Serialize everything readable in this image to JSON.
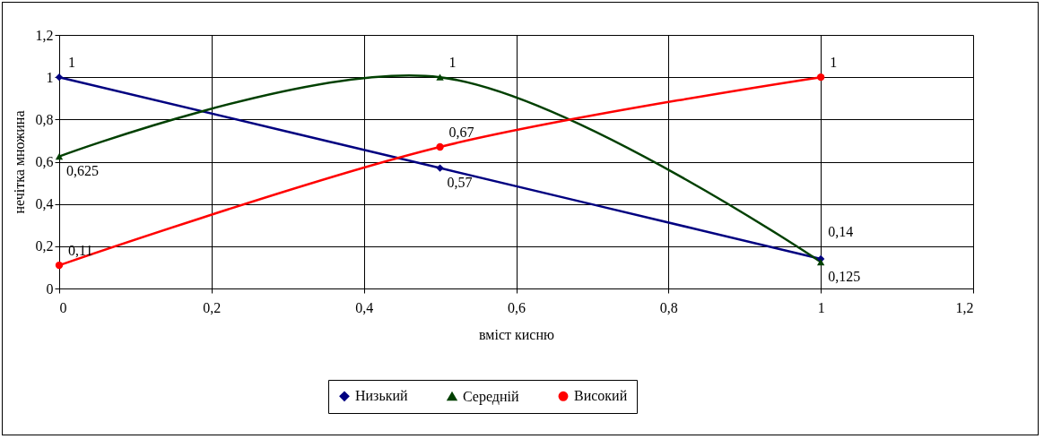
{
  "chart_data": {
    "type": "line",
    "xlabel": "вміст кисню",
    "ylabel": "нечітка множина",
    "x": [
      0,
      0.5,
      1
    ],
    "series": [
      {
        "name": "Низький",
        "color": "#000080",
        "marker": "diamond",
        "values": [
          1,
          0.57,
          0.14
        ],
        "value_labels": [
          "1",
          "0,57",
          "0,14"
        ]
      },
      {
        "name": "Середній",
        "color": "#004000",
        "marker": "triangle",
        "values": [
          0.625,
          1,
          0.125
        ],
        "value_labels": [
          "0,625",
          "1",
          "0,125"
        ]
      },
      {
        "name": "Високий",
        "color": "#ff0000",
        "marker": "circle",
        "values": [
          0.11,
          0.67,
          1
        ],
        "value_labels": [
          "0,11",
          "0,67",
          "1"
        ]
      }
    ],
    "xlim": [
      0,
      1.2
    ],
    "xticks": [
      0,
      {
        "value": 0.2,
        "label": "0,2"
      },
      {
        "value": 0.4,
        "label": "0,4"
      },
      {
        "value": 0.6,
        "label": "0,6"
      },
      {
        "value": 0.8,
        "label": "0,8"
      },
      1,
      {
        "value": 1.2,
        "label": "1,2"
      }
    ],
    "ylim": [
      0,
      1.2
    ],
    "yticks": [
      0,
      {
        "value": 0.2,
        "label": "0,2"
      },
      {
        "value": 0.4,
        "label": "0,4"
      },
      {
        "value": 0.6,
        "label": "0,6"
      },
      {
        "value": 0.8,
        "label": "0,8"
      },
      1,
      {
        "value": 1.2,
        "label": "1,2"
      }
    ],
    "grid": true,
    "legend": "bottom"
  }
}
